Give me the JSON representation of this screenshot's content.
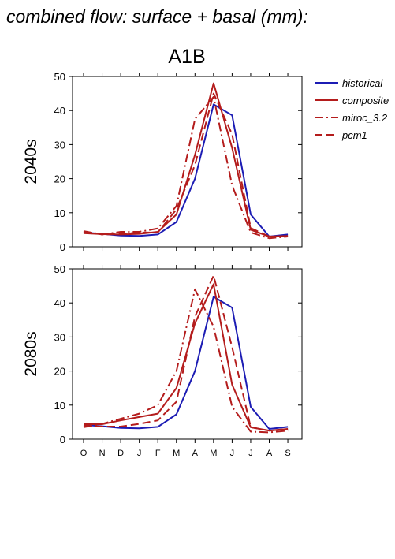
{
  "title": "combined flow: surface + basal (mm):",
  "chart_data": {
    "type": "line",
    "subtitle": "A1B",
    "x_categories": [
      "O",
      "N",
      "D",
      "J",
      "F",
      "M",
      "A",
      "M",
      "J",
      "J",
      "A",
      "S"
    ],
    "ylim": [
      0,
      50
    ],
    "yticks": [
      0,
      10,
      20,
      30,
      40,
      50
    ],
    "legend": {
      "placement": "right",
      "entries": [
        {
          "name": "historical",
          "color": "#1c1cb4",
          "style": "solid"
        },
        {
          "name": "composite",
          "color": "#b41c1c",
          "style": "solid"
        },
        {
          "name": "miroc_3.2",
          "color": "#b41c1c",
          "style": "dashdot"
        },
        {
          "name": "pcm1",
          "color": "#b41c1c",
          "style": "dash"
        }
      ]
    },
    "panels": [
      {
        "ylabel": "2040s",
        "series": [
          {
            "name": "historical",
            "values": [
              4.2,
              3.8,
              3.3,
              3.2,
              3.6,
              7.3,
              20.0,
              41.8,
              38.6,
              9.5,
              3.0,
              3.6
            ]
          },
          {
            "name": "composite",
            "values": [
              4.0,
              3.7,
              3.6,
              3.8,
              4.4,
              9.5,
              27.0,
              48.0,
              29.0,
              5.0,
              3.0,
              3.2
            ]
          },
          {
            "name": "miroc_3.2",
            "values": [
              4.6,
              3.6,
              4.4,
              4.4,
              5.4,
              12.0,
              37.5,
              44.0,
              18.0,
              4.2,
              2.5,
              3.0
            ]
          },
          {
            "name": "pcm1",
            "values": [
              4.5,
              3.6,
              3.8,
              4.2,
              4.2,
              11.0,
              24.0,
              45.0,
              33.0,
              5.5,
              3.0,
              3.0
            ]
          }
        ]
      },
      {
        "ylabel": "2080s",
        "series": [
          {
            "name": "historical",
            "values": [
              4.2,
              3.8,
              3.3,
              3.2,
              3.6,
              7.3,
              20.0,
              41.8,
              38.6,
              9.5,
              3.0,
              3.6
            ]
          },
          {
            "name": "composite",
            "values": [
              4.4,
              4.4,
              5.5,
              6.5,
              7.5,
              15.0,
              34.0,
              45.5,
              16.0,
              3.5,
              2.5,
              3.0
            ]
          },
          {
            "name": "miroc_3.2",
            "values": [
              3.5,
              4.5,
              6.0,
              7.5,
              10.0,
              20.0,
              44.0,
              33.0,
              9.5,
              2.2,
              2.0,
              2.5
            ]
          },
          {
            "name": "pcm1",
            "values": [
              4.0,
              3.7,
              3.7,
              4.5,
              5.5,
              11.0,
              36.0,
              48.0,
              27.0,
              3.5,
              2.5,
              3.0
            ]
          }
        ]
      }
    ]
  }
}
